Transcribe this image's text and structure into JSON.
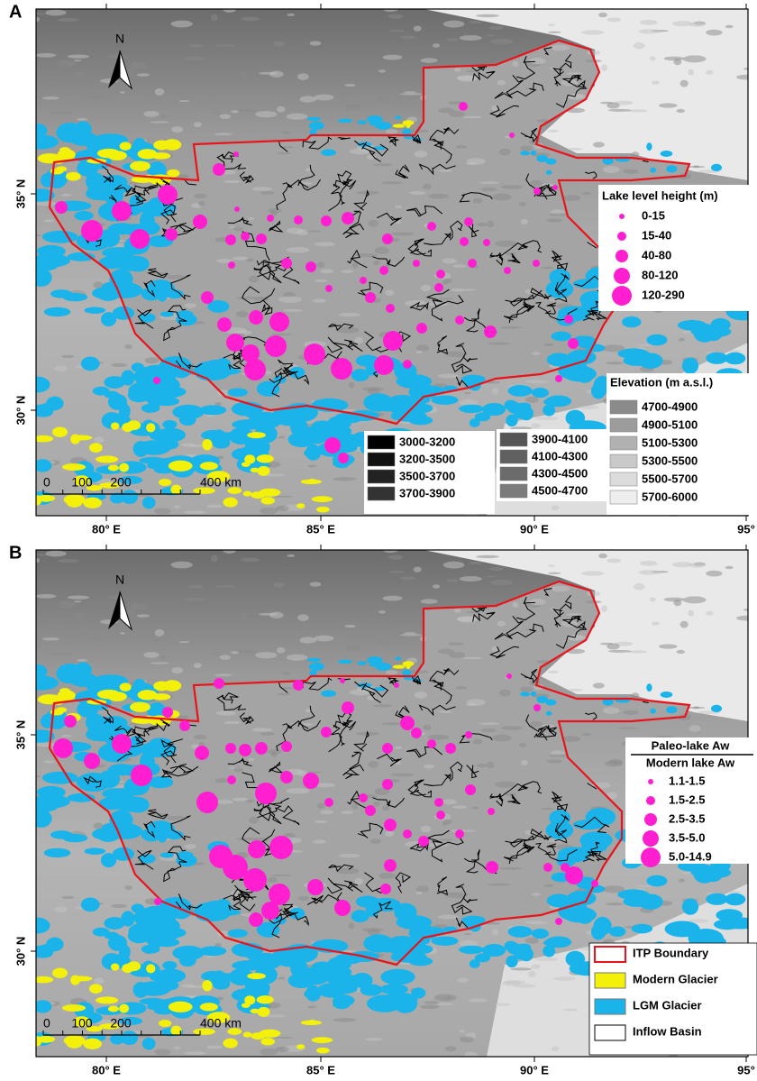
{
  "panels": [
    {
      "label": "A",
      "north": "N",
      "x_labels": [
        "80° E",
        "85° E",
        "90° E",
        "95°"
      ],
      "y_labels": [
        "35° N",
        "30° N"
      ],
      "scale_bar": [
        "0",
        "100",
        "200",
        "400 km"
      ],
      "lake_legend": {
        "title": "Lake level height (m)",
        "classes": [
          "0-15",
          "15-40",
          "40-80",
          "80-120",
          "120-290"
        ]
      },
      "elevation_legend": {
        "title": "Elevation (m a.s.l.)",
        "classes": [
          "3000-3200",
          "3200-3500",
          "3500-3700",
          "3700-3900",
          "3900-4100",
          "4100-4300",
          "4300-4500",
          "4500-4700",
          "4700-4900",
          "4900-5100",
          "5100-5300",
          "5300-5500",
          "5500-5700",
          "5700-6000"
        ]
      }
    },
    {
      "label": "B",
      "north": "N",
      "x_labels": [
        "80° E",
        "85° E",
        "90° E",
        "95°"
      ],
      "y_labels": [
        "35° N",
        "30° N"
      ],
      "scale_bar": [
        "0",
        "100",
        "200",
        "400 km"
      ],
      "ratio_legend": {
        "numerator": "Paleo-lake Aw",
        "denominator": "Modern lake Aw",
        "classes": [
          "1.1-1.5",
          "1.5-2.5",
          "2.5-3.5",
          "3.5-5.0",
          "5.0-14.9"
        ]
      },
      "legend": [
        "ITP Boundary",
        "Modern Glacier",
        "LGM Glacier",
        "Inflow Basin"
      ]
    }
  ]
}
